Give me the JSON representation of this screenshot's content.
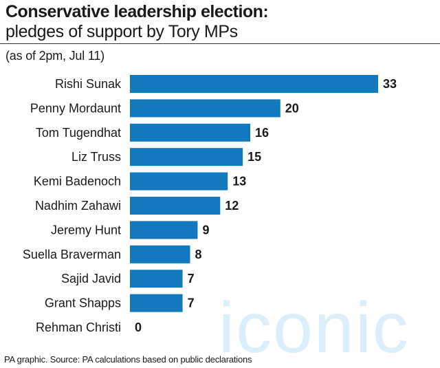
{
  "header": {
    "title": "Conservative leadership election:",
    "subtitle": "pledges of support by Tory MPs",
    "note": "(as of 2pm, Jul 11)"
  },
  "footer": {
    "source": "PA graphic. Source: PA calculations based on public declarations"
  },
  "watermark": {
    "text": "iconic"
  },
  "colors": {
    "bar": "#1279BF",
    "text": "#1a1a1a",
    "watermark": "#cfe9f7"
  },
  "chart_data": {
    "type": "bar",
    "orientation": "horizontal",
    "title": "Conservative leadership election:",
    "subtitle": "pledges of support by Tory MPs",
    "categories": [
      "Rishi Sunak",
      "Penny Mordaunt",
      "Tom Tugendhat",
      "Liz Truss",
      "Kemi Badenoch",
      "Nadhim Zahawi",
      "Jeremy Hunt",
      "Suella Braverman",
      "Sajid Javid",
      "Grant Shapps",
      "Rehman Christi"
    ],
    "values": [
      33,
      20,
      16,
      15,
      13,
      12,
      9,
      8,
      7,
      7,
      0
    ],
    "xlim": [
      0,
      33
    ],
    "grid": false,
    "legend": "none",
    "data_labels": true
  }
}
